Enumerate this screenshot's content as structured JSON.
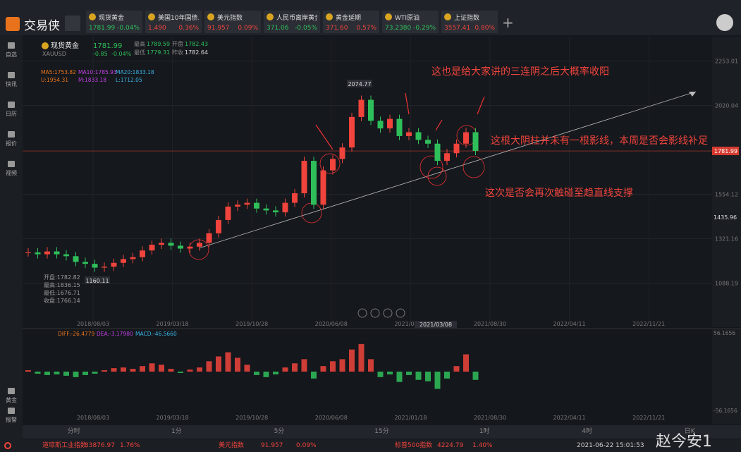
{
  "header": {
    "logo": "交易侠",
    "tabs": [
      {
        "name": "现货黄金",
        "price": "1781.99",
        "change": "-0.04%"
      },
      {
        "name": "美国10年国债...",
        "price": "1.490",
        "change": "0.36%"
      },
      {
        "name": "美元指数",
        "price": "91.957",
        "change": "0.09%"
      },
      {
        "name": "人民币离岸黄金",
        "price": "371.06",
        "change": "-0.05%"
      },
      {
        "name": "黄金延期",
        "price": "371.60",
        "change": "0.57%"
      },
      {
        "name": "WTI原油",
        "price": "73.2380",
        "change": "-0.29%"
      },
      {
        "name": "上证指数",
        "price": "3557.41",
        "change": "0.80%"
      }
    ]
  },
  "sidebar": {
    "top": [
      "自选",
      "快讯",
      "日历",
      "报价",
      "视频"
    ],
    "bottom": [
      "黄金",
      "报警"
    ]
  },
  "quote": {
    "name": "现货黄金",
    "symbol": "XAUUSD",
    "price": "1781.99",
    "change": "-0.85",
    "pct": "-0.04%",
    "stats": [
      {
        "label": "最高",
        "value": "1789.59"
      },
      {
        "label": "开盘",
        "value": "1782.43"
      },
      {
        "label": "最低",
        "value": "1779.31"
      },
      {
        "label": "昨收",
        "value": "1782.64"
      }
    ]
  },
  "indicators": {
    "ma": [
      "MA5:1753.82",
      "MA10:1785.93",
      "MA20:1833.18"
    ],
    "boll": [
      "U:1954.31",
      "M:1833.18",
      "L:1712.05"
    ],
    "macd": [
      "DIFF:-26.4779",
      "DEA:-3.17980",
      "MACD:-46.5660"
    ]
  },
  "ohlc_panel": [
    "开盘:1782.82",
    "最高:1836.15",
    "最低:1676.71",
    "收盘:1766.14"
  ],
  "annotations": [
    "这也是给大家讲的三连阴之后大概率收阳",
    "这根大阴柱并未有一根影线，本周是否会影线补足",
    "这次是否会再次触碰至趋直线支撑"
  ],
  "chart_data": {
    "type": "candlestick",
    "price_labels": {
      "high": "2074.77",
      "low": "1160.11",
      "alert": "1435.96"
    },
    "current_price": 1781.99,
    "ylim": [
      891,
      2370
    ],
    "yticks": [
      1088.19,
      1321.16,
      1554.12,
      2020.04,
      2253.01
    ],
    "x_labels": [
      "2018/08/03",
      "2019/03/18",
      "2019/10/28",
      "2020/06/08",
      "2021/01/18",
      "2021/08/30",
      "2022/04/11",
      "2022/11/21"
    ],
    "crosshair_date": "2021/03/08",
    "values": [
      1250,
      1240,
      1255,
      1240,
      1230,
      1200,
      1190,
      1170,
      1175,
      1195,
      1215,
      1225,
      1260,
      1290,
      1300,
      1285,
      1270,
      1280,
      1300,
      1350,
      1420,
      1490,
      1500,
      1510,
      1480,
      1470,
      1460,
      1510,
      1560,
      1730,
      1500,
      1680,
      1740,
      1800,
      1960,
      2050,
      1940,
      1900,
      1950,
      1860,
      1880,
      1840,
      1820,
      1730,
      1770,
      1820,
      1880,
      1782
    ],
    "macd": {
      "y2lim": [
        -56.1656,
        56.1656
      ],
      "y2ticks": [
        -56.1656,
        56.1656
      ],
      "values": [
        2,
        -3,
        -5,
        -4,
        -6,
        -8,
        -5,
        -3,
        2,
        5,
        6,
        4,
        8,
        12,
        10,
        4,
        -2,
        3,
        6,
        15,
        22,
        28,
        20,
        10,
        -5,
        -8,
        -4,
        6,
        12,
        18,
        -10,
        8,
        15,
        18,
        32,
        40,
        18,
        -8,
        -4,
        -15,
        -5,
        -12,
        -14,
        -25,
        -10,
        8,
        25,
        -12
      ]
    }
  },
  "timeframes": [
    "分时",
    "1分",
    "5分",
    "15分",
    "1时",
    "4时",
    "日K"
  ],
  "status": [
    {
      "name": "道琼斯工业指数",
      "price": "33876.97",
      "change": "1.76%"
    },
    {
      "name": "美元指数",
      "price": "91.957",
      "change": "0.09%"
    },
    {
      "name": "标普500指数",
      "price": "4224.79",
      "change": "1.40%"
    }
  ],
  "clock": "2021-06-22 15:01:53",
  "watermark": "赵今安1"
}
